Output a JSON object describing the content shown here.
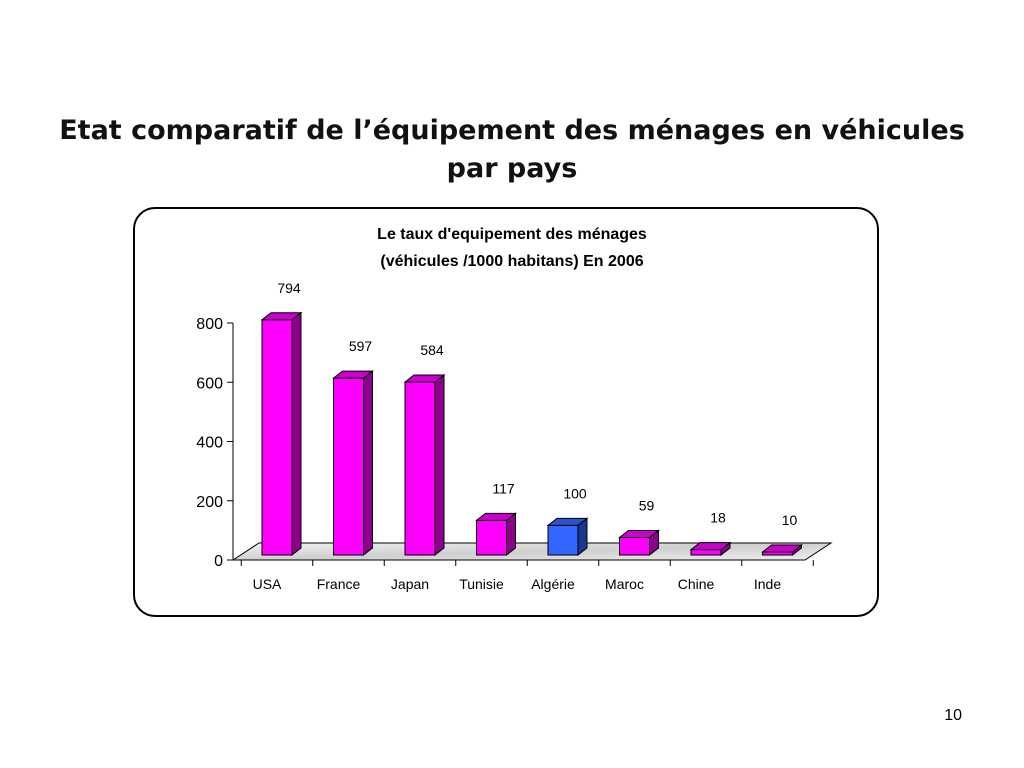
{
  "slide": {
    "title_line1": "Etat comparatif de l’équipement des ménages en véhicules",
    "title_line2": "par pays",
    "page_number": "10"
  },
  "chart_data": {
    "type": "bar",
    "title_line1": "Le taux d'equipement des ménages",
    "title_line2": "(véhicules /1000 habitans) En 2006",
    "categories": [
      "USA",
      "France",
      "Japan",
      "Tunisie",
      "Algérie",
      "Maroc",
      "Chine",
      "Inde"
    ],
    "values": [
      794,
      597,
      584,
      117,
      100,
      59,
      18,
      10
    ],
    "data_labels": [
      "794",
      "597",
      "584",
      "117",
      "100",
      "59",
      "18",
      "10"
    ],
    "y_ticks": [
      "0",
      "200",
      "400",
      "600",
      "800"
    ],
    "ylim": [
      0,
      800
    ],
    "style": "3d-column",
    "colors": {
      "default_bar": "#ff00ff",
      "highlight_bar": "#3366ff",
      "highlight_category": "Algérie",
      "floor": "#d8d8d8"
    }
  }
}
